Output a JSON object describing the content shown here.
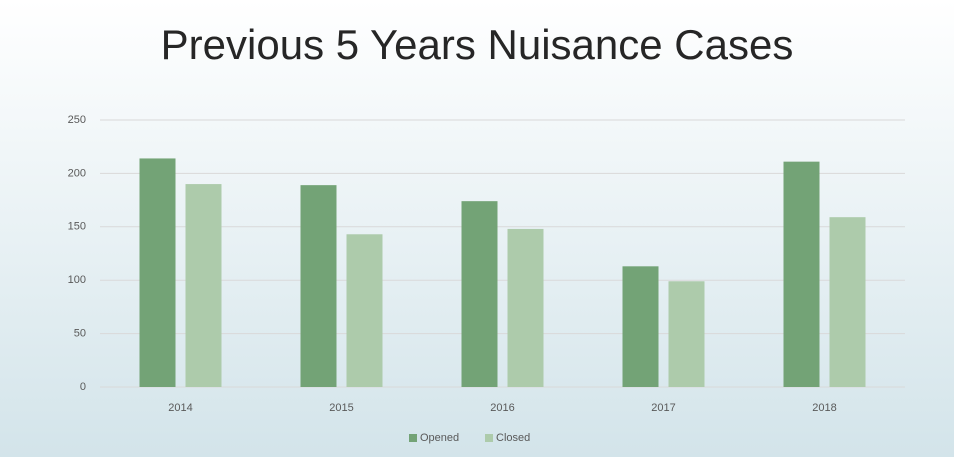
{
  "chart_data": {
    "type": "bar",
    "title": "Previous 5 Years Nuisance Cases",
    "categories": [
      "2014",
      "2015",
      "2016",
      "2017",
      "2018"
    ],
    "series": [
      {
        "name": "Opened",
        "color": "#73a376",
        "values": [
          214,
          189,
          174,
          113,
          211
        ]
      },
      {
        "name": "Closed",
        "color": "#adcbab",
        "values": [
          190,
          143,
          148,
          99,
          159
        ]
      }
    ],
    "ylim": [
      0,
      250
    ],
    "yticks": [
      0,
      50,
      100,
      150,
      200,
      250
    ],
    "grid": true,
    "legend": "bottom"
  }
}
